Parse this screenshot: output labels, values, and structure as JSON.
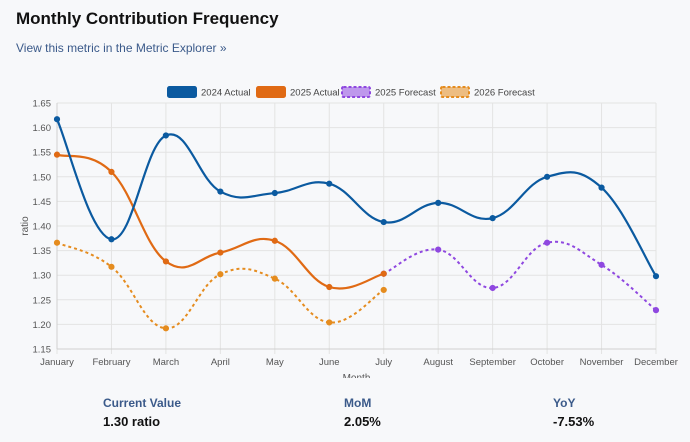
{
  "header": {
    "title": "Monthly Contribution Frequency",
    "link_text": "View this metric in the Metric Explorer »"
  },
  "colors": {
    "actual_2024": "#0b5aa0",
    "actual_2025": "#e06a14",
    "forecast_2025": "#8f48e0",
    "forecast_2026": "#e58c1f",
    "grid": "#e3e3e3",
    "axis_text": "#555555"
  },
  "chart_data": {
    "type": "line",
    "title": "",
    "xlabel": "Month",
    "ylabel": "ratio",
    "ylim": [
      1.15,
      1.65
    ],
    "yticks": [
      "1.15",
      "1.20",
      "1.25",
      "1.30",
      "1.35",
      "1.40",
      "1.45",
      "1.50",
      "1.55",
      "1.60",
      "1.65"
    ],
    "legend_position": "top-center",
    "categories": [
      "January",
      "February",
      "March",
      "April",
      "May",
      "June",
      "July",
      "August",
      "September",
      "October",
      "November",
      "December"
    ],
    "series": [
      {
        "name": "2024 Actual",
        "style": "solid",
        "color_key": "actual_2024",
        "values": [
          1.617,
          1.373,
          1.584,
          1.47,
          1.467,
          1.486,
          1.408,
          1.447,
          1.416,
          1.5,
          1.478,
          1.298
        ]
      },
      {
        "name": "2025 Actual",
        "style": "solid",
        "color_key": "actual_2025",
        "values": [
          1.545,
          1.51,
          1.328,
          1.346,
          1.37,
          1.276,
          1.303,
          null,
          null,
          null,
          null,
          null
        ]
      },
      {
        "name": "2025 Forecast",
        "style": "dashed",
        "color_key": "forecast_2025",
        "values": [
          null,
          null,
          null,
          null,
          null,
          null,
          1.303,
          1.352,
          1.274,
          1.366,
          1.321,
          1.229
        ]
      },
      {
        "name": "2026 Forecast",
        "style": "dashed",
        "color_key": "forecast_2026",
        "values": [
          1.366,
          1.317,
          1.192,
          1.302,
          1.293,
          1.204,
          1.27,
          null,
          null,
          null,
          null,
          null
        ]
      }
    ]
  },
  "stats": [
    {
      "label": "Current Value",
      "value": "1.30 ratio"
    },
    {
      "label": "MoM",
      "value": "2.05%"
    },
    {
      "label": "YoY",
      "value": "-7.53%"
    }
  ]
}
